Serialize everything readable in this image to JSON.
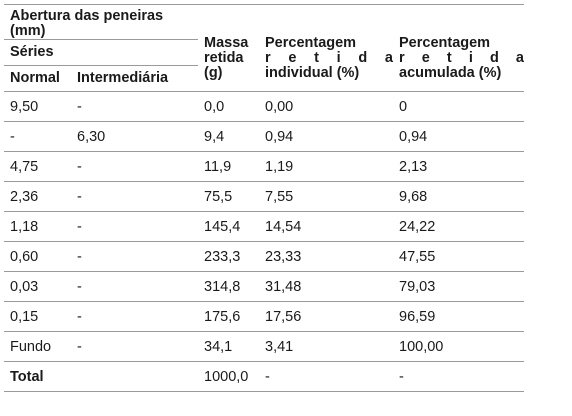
{
  "header": {
    "abertura": "Abertura das peneiras",
    "abertura_unit": "(mm)",
    "series": "Séries",
    "normal": "Normal",
    "intermediaria": "Intermediária",
    "massa_1": "Massa",
    "massa_2": "retida",
    "massa_3": "(g)",
    "pct_ind_1": "Percentagem",
    "pct_ind_2": "r e t i d a",
    "pct_ind_3": "individual (%)",
    "pct_acum_1": "Percentagem",
    "pct_acum_2": "r e t i d a",
    "pct_acum_3": "acumulada (%)"
  },
  "rows": [
    {
      "normal": "9,50",
      "intermediaria": "-",
      "massa": "0,0",
      "individual": "0,00",
      "acumulada": "0"
    },
    {
      "normal": "-",
      "intermediaria": "6,30",
      "massa": "9,4",
      "individual": "0,94",
      "acumulada": "0,94"
    },
    {
      "normal": "4,75",
      "intermediaria": "-",
      "massa": "11,9",
      "individual": "1,19",
      "acumulada": "2,13"
    },
    {
      "normal": "2,36",
      "intermediaria": "-",
      "massa": "75,5",
      "individual": "7,55",
      "acumulada": "9,68"
    },
    {
      "normal": "1,18",
      "intermediaria": "-",
      "massa": "145,4",
      "individual": "14,54",
      "acumulada": "24,22"
    },
    {
      "normal": "0,60",
      "intermediaria": "-",
      "massa": "233,3",
      "individual": "23,33",
      "acumulada": "47,55"
    },
    {
      "normal": "0,03",
      "intermediaria": "-",
      "massa": "314,8",
      "individual": "31,48",
      "acumulada": "79,03"
    },
    {
      "normal": "0,15",
      "intermediaria": "-",
      "massa": "175,6",
      "individual": "17,56",
      "acumulada": "96,59"
    },
    {
      "normal": "Fundo",
      "intermediaria": "-",
      "massa": "34,1",
      "individual": "3,41",
      "acumulada": "100,00"
    }
  ],
  "total": {
    "label": "Total",
    "massa": "1000,0",
    "individual": "-",
    "acumulada": "-"
  }
}
